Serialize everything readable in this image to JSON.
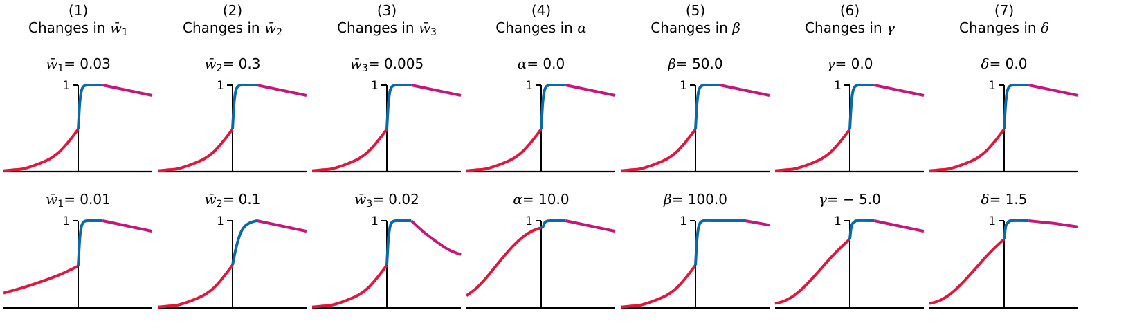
{
  "colors": {
    "left_segment": "#e0163d",
    "middle_segment": "#0a6aa8",
    "right_segment": "#c3187a",
    "axis": "#000000"
  },
  "chart_data": {
    "type": "line",
    "grid": false,
    "xlim": [
      -1,
      1
    ],
    "ylim": [
      0,
      1
    ],
    "y_tick_labels": [
      "1"
    ],
    "columns": [
      {
        "number": "(1)",
        "prefix": "Changes in ",
        "symbol": "w̄",
        "sub": "1"
      },
      {
        "number": "(2)",
        "prefix": "Changes in ",
        "symbol": "w̄",
        "sub": "2"
      },
      {
        "number": "(3)",
        "prefix": "Changes in ",
        "symbol": "w̄",
        "sub": "3"
      },
      {
        "number": "(4)",
        "prefix": "Changes in ",
        "symbol": "α",
        "sub": ""
      },
      {
        "number": "(5)",
        "prefix": "Changes in ",
        "symbol": "β",
        "sub": ""
      },
      {
        "number": "(6)",
        "prefix": "Changes in ",
        "symbol": "γ",
        "sub": ""
      },
      {
        "number": "(7)",
        "prefix": "Changes in ",
        "symbol": "δ",
        "sub": ""
      }
    ],
    "panels": [
      {
        "row": 0,
        "col": 0,
        "symbol": "w̄",
        "sub": "1",
        "value": "= 0.03",
        "red": "std",
        "blue": "std",
        "magenta": "std"
      },
      {
        "row": 0,
        "col": 1,
        "symbol": "w̄",
        "sub": "2",
        "value": "= 0.3",
        "red": "std",
        "blue": "std",
        "magenta": "std"
      },
      {
        "row": 0,
        "col": 2,
        "symbol": "w̄",
        "sub": "3",
        "value": "= 0.005",
        "red": "std",
        "blue": "std",
        "magenta": "std"
      },
      {
        "row": 0,
        "col": 3,
        "symbol": "α",
        "sub": "",
        "value": "= 0.0",
        "red": "std",
        "blue": "std",
        "magenta": "std"
      },
      {
        "row": 0,
        "col": 4,
        "symbol": "β",
        "sub": "",
        "value": "= 50.0",
        "red": "std",
        "blue": "std",
        "magenta": "std"
      },
      {
        "row": 0,
        "col": 5,
        "symbol": "γ",
        "sub": "",
        "value": "= 0.0",
        "red": "std",
        "blue": "std",
        "magenta": "std"
      },
      {
        "row": 0,
        "col": 6,
        "symbol": "δ",
        "sub": "",
        "value": "= 0.0",
        "red": "std",
        "blue": "std",
        "magenta": "std"
      },
      {
        "row": 1,
        "col": 0,
        "symbol": "w̄",
        "sub": "1",
        "value": "= 0.01",
        "red": [
          [
            -1,
            0.17
          ],
          [
            -0.75,
            0.23
          ],
          [
            -0.5,
            0.3
          ],
          [
            -0.25,
            0.38
          ],
          [
            0,
            0.48
          ]
        ],
        "blue": [
          [
            0,
            0.48
          ],
          [
            0.02,
            0.78
          ],
          [
            0.04,
            0.92
          ],
          [
            0.06,
            0.97
          ],
          [
            0.08,
            0.99
          ],
          [
            0.12,
            1
          ],
          [
            0.18,
            1
          ],
          [
            0.25,
            1
          ],
          [
            0.33,
            1
          ]
        ],
        "magenta": "std"
      },
      {
        "row": 1,
        "col": 1,
        "symbol": "w̄",
        "sub": "2",
        "value": "= 0.1",
        "red": "std",
        "blue": [
          [
            0,
            0.49
          ],
          [
            0.04,
            0.66
          ],
          [
            0.08,
            0.79
          ],
          [
            0.12,
            0.88
          ],
          [
            0.17,
            0.94
          ],
          [
            0.22,
            0.97
          ],
          [
            0.28,
            0.99
          ],
          [
            0.33,
            1
          ]
        ],
        "magenta": "std"
      },
      {
        "row": 1,
        "col": 2,
        "symbol": "w̄",
        "sub": "3",
        "value": "= 0.02",
        "red": "std",
        "blue": "std",
        "magenta": [
          [
            0.33,
            1
          ],
          [
            0.5,
            0.87
          ],
          [
            0.67,
            0.76
          ],
          [
            0.83,
            0.67
          ],
          [
            1,
            0.61
          ]
        ]
      },
      {
        "row": 1,
        "col": 3,
        "symbol": "α",
        "sub": "",
        "value": "= 10.0",
        "red": [
          [
            -1,
            0.14
          ],
          [
            -0.875,
            0.22
          ],
          [
            -0.75,
            0.33
          ],
          [
            -0.625,
            0.46
          ],
          [
            -0.5,
            0.59
          ],
          [
            -0.375,
            0.71
          ],
          [
            -0.25,
            0.81
          ],
          [
            -0.125,
            0.88
          ],
          [
            0,
            0.92
          ]
        ],
        "blue": [
          [
            0,
            0.92
          ],
          [
            0.03,
            0.94
          ],
          [
            0.05,
            0.98
          ],
          [
            0.08,
            0.995
          ],
          [
            0.12,
            1
          ],
          [
            0.33,
            1
          ]
        ],
        "magenta": "std"
      },
      {
        "row": 1,
        "col": 4,
        "symbol": "β",
        "sub": "",
        "value": "= 100.0",
        "red": "std",
        "blue": [
          [
            0,
            0.49
          ],
          [
            0.02,
            0.78
          ],
          [
            0.04,
            0.92
          ],
          [
            0.06,
            0.97
          ],
          [
            0.08,
            0.99
          ],
          [
            0.12,
            1
          ],
          [
            0.3,
            1
          ],
          [
            0.5,
            1
          ],
          [
            0.67,
            1
          ]
        ],
        "magenta": [
          [
            0.67,
            1
          ],
          [
            1,
            0.95
          ]
        ]
      },
      {
        "row": 1,
        "col": 5,
        "symbol": "γ",
        "sub": "",
        "value": "= − 5.0",
        "red": [
          [
            -1,
            0.05
          ],
          [
            -0.875,
            0.08
          ],
          [
            -0.75,
            0.14
          ],
          [
            -0.625,
            0.23
          ],
          [
            -0.5,
            0.34
          ],
          [
            -0.375,
            0.46
          ],
          [
            -0.25,
            0.58
          ],
          [
            -0.125,
            0.69
          ],
          [
            0,
            0.79
          ]
        ],
        "blue": [
          [
            0,
            0.79
          ],
          [
            0.02,
            0.93
          ],
          [
            0.04,
            0.97
          ],
          [
            0.07,
            0.99
          ],
          [
            0.1,
            1
          ],
          [
            0.33,
            1
          ]
        ],
        "magenta": "std"
      },
      {
        "row": 1,
        "col": 6,
        "symbol": "δ",
        "sub": "",
        "value": "= 1.5",
        "red": [
          [
            -1,
            0.05
          ],
          [
            -0.875,
            0.08
          ],
          [
            -0.75,
            0.14
          ],
          [
            -0.625,
            0.23
          ],
          [
            -0.5,
            0.34
          ],
          [
            -0.375,
            0.46
          ],
          [
            -0.25,
            0.58
          ],
          [
            -0.125,
            0.69
          ],
          [
            0,
            0.79
          ]
        ],
        "blue": [
          [
            0,
            0.79
          ],
          [
            0.02,
            0.93
          ],
          [
            0.04,
            0.97
          ],
          [
            0.07,
            0.99
          ],
          [
            0.1,
            1
          ],
          [
            0.33,
            1
          ]
        ],
        "magenta": [
          [
            0.33,
            1
          ],
          [
            0.5,
            0.985
          ],
          [
            0.67,
            0.97
          ],
          [
            0.83,
            0.95
          ],
          [
            1,
            0.93
          ]
        ]
      }
    ],
    "standard_curves": {
      "red": [
        [
          -1,
          0.01
        ],
        [
          -0.875,
          0.02
        ],
        [
          -0.75,
          0.03
        ],
        [
          -0.625,
          0.06
        ],
        [
          -0.5,
          0.1
        ],
        [
          -0.375,
          0.15
        ],
        [
          -0.25,
          0.23
        ],
        [
          -0.125,
          0.35
        ],
        [
          0,
          0.49
        ]
      ],
      "blue": [
        [
          0,
          0.49
        ],
        [
          0.02,
          0.78
        ],
        [
          0.04,
          0.92
        ],
        [
          0.06,
          0.97
        ],
        [
          0.08,
          0.99
        ],
        [
          0.12,
          1
        ],
        [
          0.18,
          1
        ],
        [
          0.25,
          1
        ],
        [
          0.33,
          1
        ]
      ],
      "magenta": [
        [
          0.33,
          1
        ],
        [
          1,
          0.88
        ]
      ]
    }
  }
}
